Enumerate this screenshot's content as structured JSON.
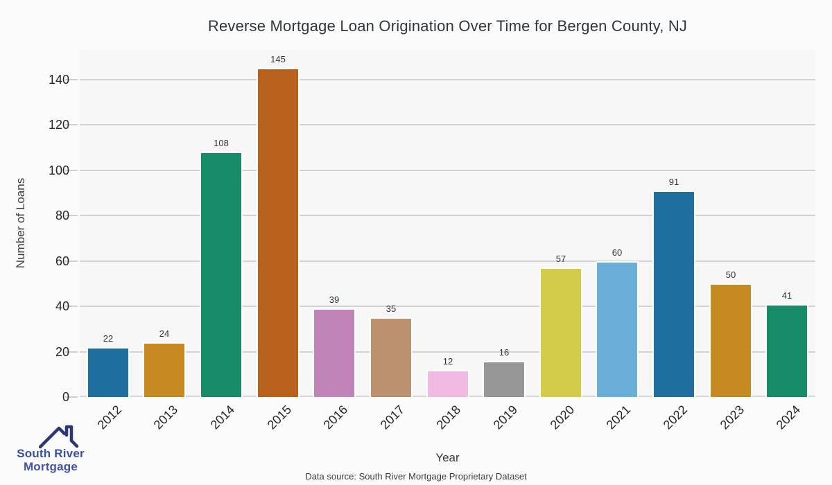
{
  "title": "Reverse Mortgage Loan Origination Over Time for Bergen County, NJ",
  "chart_data": {
    "type": "bar",
    "title": "Reverse Mortgage Loan Origination Over Time for Bergen County, NJ",
    "categories": [
      "2012",
      "2013",
      "2014",
      "2015",
      "2016",
      "2017",
      "2018",
      "2019",
      "2020",
      "2021",
      "2022",
      "2023",
      "2024"
    ],
    "values": [
      22,
      24,
      108,
      145,
      39,
      35,
      12,
      16,
      57,
      60,
      91,
      50,
      41
    ],
    "xlabel": "Year",
    "ylabel": "Number of Loans",
    "yticks": [
      0,
      20,
      40,
      60,
      80,
      100,
      120,
      140
    ],
    "ylim": [
      0,
      153
    ],
    "grid": "horizontal",
    "bar_value_labels": true,
    "xtick_rotation": 45,
    "legend": "none",
    "palette": [
      "#1f6f9e",
      "#c78a23",
      "#178a68",
      "#b8611d",
      "#c184b9",
      "#bc9170",
      "#f1bae2",
      "#969696",
      "#d3cb4a",
      "#69afd7"
    ],
    "plot_background": "#f7f7f7",
    "gridline_color": "#d2d2d2"
  },
  "logo": {
    "line1": "South River",
    "line2": "Mortgage",
    "icon": "house-roof-icon",
    "roof_color": "#2c3875",
    "text_color_line1": "#3c4da6",
    "text_color_line2": "#4353ae"
  },
  "footer": {
    "data_source": "Data source: South River Mortgage Proprietary Dataset"
  }
}
